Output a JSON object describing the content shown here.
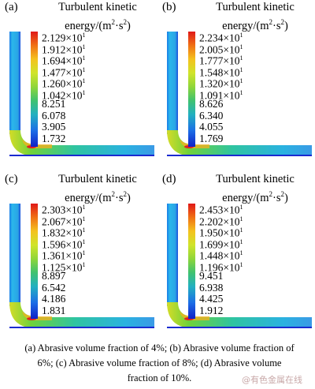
{
  "panels": [
    {
      "label": "(a)",
      "title_line1": "Turbulent kinetic",
      "title_line2": "energy/(m",
      "ticks": [
        "2.129×10",
        "1.912×10",
        "1.694×10",
        "1.477×10",
        "1.260×10",
        "1.042×10",
        "8.251",
        "6.078",
        "3.905",
        "1.732"
      ]
    },
    {
      "label": "(b)",
      "title_line1": "Turbulent kinetic",
      "title_line2": "energy/(m",
      "ticks": [
        "2.234×10",
        "2.005×10",
        "1.777×10",
        "1.548×10",
        "1.320×10",
        "1.091×10",
        "8.626",
        "6.340",
        "4.055",
        "1.769"
      ]
    },
    {
      "label": "(c)",
      "title_line1": "Turbulent kinetic",
      "title_line2": "energy/(m",
      "ticks": [
        "2.303×10",
        "2.067×10",
        "1.832×10",
        "1.596×10",
        "1.361×10",
        "1.125×10",
        "8.897",
        "6.542",
        "4.186",
        "1.831"
      ]
    },
    {
      "label": "(d)",
      "title_line1": "Turbulent kinetic",
      "title_line2": "energy/(m",
      "ticks": [
        "2.453×10",
        "2.202×10",
        "1.950×10",
        "1.699×10",
        "1.448×10",
        "1.196×10",
        "9.451",
        "6.938",
        "4.425",
        "1.912"
      ]
    }
  ],
  "units": {
    "sq": "2",
    "mid": "·s",
    "close": ")",
    "exp": "1"
  },
  "caption": "(a) Abrasive volume fraction of 4%; (b) Abrasive volume fraction of 6%; (c) Abrasive volume fraction of 8%; (d) Abrasive volume fraction of 10%.",
  "watermark": "@有色金属在线",
  "colors": {
    "pipe_blue": "#1a1fd0",
    "pipe_cyan": "#2ab8e8",
    "high_red": "#e01818",
    "mid_green": "#6fd23a"
  }
}
